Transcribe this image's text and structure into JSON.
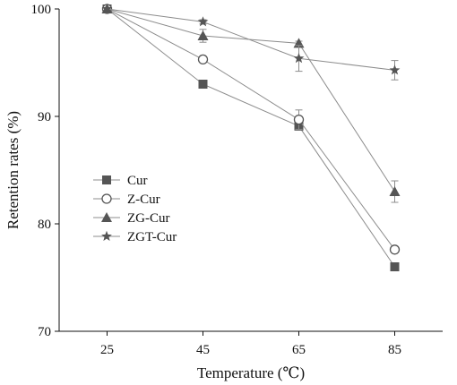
{
  "chart_data": {
    "type": "line",
    "xlabel": "Temperature (℃)",
    "ylabel": "Retention rates (%)",
    "x": [
      25,
      45,
      65,
      85
    ],
    "xticks": [
      "25",
      "45",
      "65",
      "85"
    ],
    "xlim": [
      15,
      95
    ],
    "ylim": [
      70,
      100
    ],
    "yticks": [
      "70",
      "80",
      "90",
      "100"
    ],
    "grid": false,
    "legend_position": "lower-left",
    "series": [
      {
        "name": "Cur",
        "marker": "square-filled",
        "values": [
          100,
          93.0,
          89.1,
          76.0
        ],
        "errors": [
          0,
          0,
          0.3,
          0.3
        ]
      },
      {
        "name": "Z-Cur",
        "marker": "circle-open",
        "values": [
          100,
          95.3,
          89.7,
          77.6
        ],
        "errors": [
          0,
          0,
          0.9,
          0.2
        ]
      },
      {
        "name": "ZG-Cur",
        "marker": "triangle-filled",
        "values": [
          100,
          97.5,
          96.8,
          83.0
        ],
        "errors": [
          0,
          0.6,
          0.2,
          1.0
        ]
      },
      {
        "name": "ZGT-Cur",
        "marker": "star",
        "values": [
          100,
          98.8,
          95.4,
          94.3
        ],
        "errors": [
          0,
          0.2,
          1.2,
          0.9
        ]
      }
    ],
    "colors": {
      "marker": "#555555",
      "line": "#8c8c8c",
      "axis": "#111111"
    }
  }
}
